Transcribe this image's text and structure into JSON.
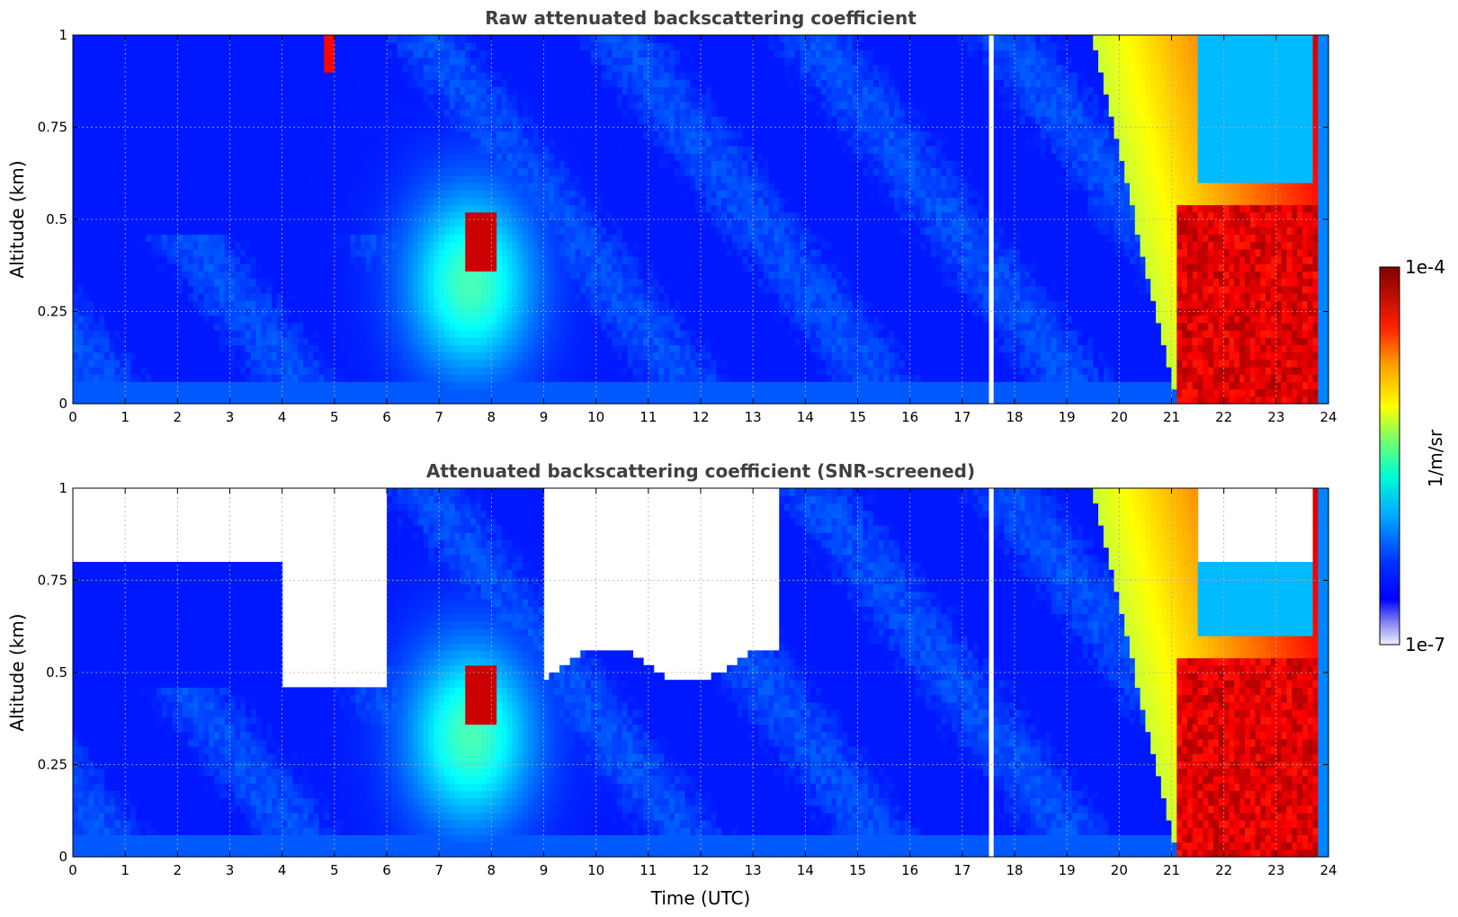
{
  "chart_data": [
    {
      "type": "heatmap",
      "title": "Raw attenuated backscattering coefficient",
      "xlabel": "",
      "ylabel": "Altitude (km)",
      "xlim": [
        0,
        24
      ],
      "ylim": [
        0,
        1
      ],
      "x_ticks": [
        "0",
        "1",
        "2",
        "3",
        "4",
        "5",
        "6",
        "7",
        "8",
        "9",
        "10",
        "11",
        "12",
        "13",
        "14",
        "15",
        "16",
        "17",
        "18",
        "19",
        "20",
        "21",
        "22",
        "23",
        "24"
      ],
      "y_ticks": [
        {
          "value": 0,
          "label": "0"
        },
        {
          "value": 0.25,
          "label": "0.25"
        },
        {
          "value": 0.5,
          "label": "0.5"
        },
        {
          "value": 0.75,
          "label": "0.75"
        },
        {
          "value": 1,
          "label": "1"
        }
      ],
      "grid": true,
      "features": [
        {
          "time_range": [
            0,
            6
          ],
          "alt_range": [
            0,
            0.45
          ],
          "level": 0.22
        },
        {
          "time_range": [
            0,
            6
          ],
          "alt_range": [
            0.45,
            1
          ],
          "level": 0.08,
          "noisy": true
        },
        {
          "time_range": [
            6.5,
            9
          ],
          "alt_range": [
            0.1,
            0.5
          ],
          "level": 0.4
        },
        {
          "time_range": [
            7.5,
            8.1
          ],
          "alt_range": [
            0.35,
            0.5
          ],
          "level": 0.95
        },
        {
          "time_range": [
            4.8,
            4.95
          ],
          "alt_range": [
            0.9,
            1
          ],
          "level": 0.9
        },
        {
          "time_range": [
            19.5,
            21.5
          ],
          "alt_range": [
            0,
            1
          ],
          "level": 0.7
        },
        {
          "time_range": [
            21,
            24
          ],
          "alt_range": [
            0,
            0.55
          ],
          "level": 0.9
        },
        {
          "time_range": [
            17.1,
            18.2
          ],
          "alt_range": [
            0,
            1
          ],
          "level": 0.2,
          "gaps": true
        }
      ]
    },
    {
      "type": "heatmap",
      "title": "Attenuated backscattering coefficient (SNR-screened)",
      "xlabel": "Time (UTC)",
      "ylabel": "Altitude (km)",
      "xlim": [
        0,
        24
      ],
      "ylim": [
        0,
        1
      ],
      "x_ticks": [
        "0",
        "1",
        "2",
        "3",
        "4",
        "5",
        "6",
        "7",
        "8",
        "9",
        "10",
        "11",
        "12",
        "13",
        "14",
        "15",
        "16",
        "17",
        "18",
        "19",
        "20",
        "21",
        "22",
        "23",
        "24"
      ],
      "y_ticks": [
        {
          "value": 0,
          "label": "0"
        },
        {
          "value": 0.25,
          "label": "0.25"
        },
        {
          "value": 0.5,
          "label": "0.5"
        },
        {
          "value": 0.75,
          "label": "0.75"
        },
        {
          "value": 1,
          "label": "1"
        }
      ],
      "grid": true,
      "features": [
        {
          "time_range": [
            0,
            6
          ],
          "alt_range": [
            0,
            0.45
          ],
          "level": 0.22
        },
        {
          "time_range": [
            0,
            4
          ],
          "alt_range": [
            0.45,
            0.8
          ],
          "level": 0.05
        },
        {
          "time_range": [
            6.5,
            9
          ],
          "alt_range": [
            0.1,
            0.6
          ],
          "level": 0.4
        },
        {
          "time_range": [
            7.5,
            8.1
          ],
          "alt_range": [
            0.35,
            0.5
          ],
          "level": 1.0
        },
        {
          "time_range": [
            9,
            13.5
          ],
          "alt_range": [
            0.5,
            1
          ],
          "level": null
        },
        {
          "time_range": [
            19.5,
            21.5
          ],
          "alt_range": [
            0,
            1
          ],
          "level": 0.7
        },
        {
          "time_range": [
            21,
            24
          ],
          "alt_range": [
            0,
            0.5
          ],
          "level": 0.92
        }
      ]
    }
  ],
  "colorbar": {
    "label": "1/m/sr",
    "max_label": "1e-4",
    "min_label": "1e-7",
    "range": [
      "1e-7",
      "1e-4"
    ],
    "colormap": "jet with white-lavender low end"
  }
}
